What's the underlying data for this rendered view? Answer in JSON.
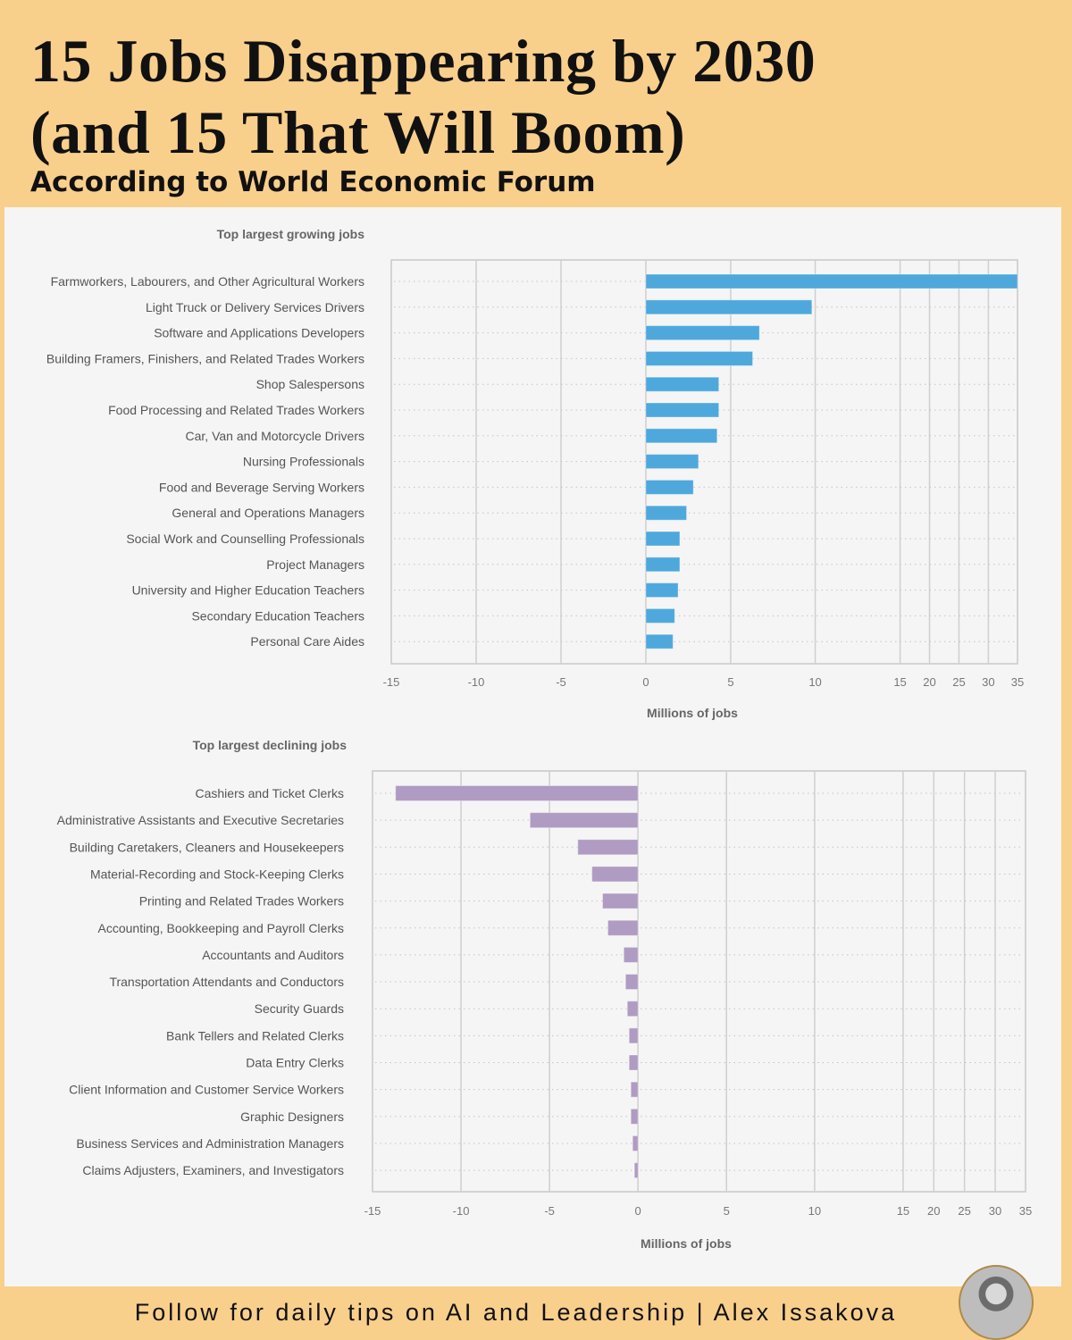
{
  "header": {
    "title_line1": "15 Jobs Disappearing by 2030",
    "title_line2": "(and 15 That Will Boom)",
    "subtitle": "According to World Economic Forum"
  },
  "footer": {
    "text": "Follow for daily tips on AI and Leadership  |  Alex Issakova",
    "avatar": "author-photo"
  },
  "chart_data": [
    {
      "type": "bar",
      "orientation": "horizontal",
      "title": "Top largest growing jobs",
      "xlabel": "Millions of jobs",
      "xticks": [
        -15,
        -10,
        -5,
        0,
        5,
        10,
        15,
        20,
        25,
        30,
        35
      ],
      "xlim": [
        -15,
        35
      ],
      "x_scale": "compressed above 15",
      "grid": true,
      "color": "#4ea8dc",
      "categories": [
        "Farmworkers, Labourers, and Other Agricultural Workers",
        "Light Truck or Delivery Services Drivers",
        "Software and Applications Developers",
        "Building Framers, Finishers, and Related Trades Workers",
        "Shop Salespersons",
        "Food Processing and Related Trades Workers",
        "Car, Van and Motorcycle Drivers",
        "Nursing Professionals",
        "Food and Beverage Serving Workers",
        "General and Operations Managers",
        "Social Work and Counselling Professionals",
        "Project Managers",
        "University and Higher Education Teachers",
        "Secondary Education Teachers",
        "Personal Care Aides"
      ],
      "values": [
        35,
        9.8,
        6.7,
        6.3,
        4.3,
        4.3,
        4.2,
        3.1,
        2.8,
        2.4,
        2.0,
        2.0,
        1.9,
        1.7,
        1.6
      ]
    },
    {
      "type": "bar",
      "orientation": "horizontal",
      "title": "Top largest declining jobs",
      "xlabel": "Millions of jobs",
      "xticks": [
        -15,
        -10,
        -5,
        0,
        5,
        10,
        15,
        20,
        25,
        30,
        35
      ],
      "xlim": [
        -15,
        35
      ],
      "x_scale": "compressed above 15",
      "grid": true,
      "color": "#b09bc2",
      "categories": [
        "Cashiers and Ticket Clerks",
        "Administrative Assistants and Executive Secretaries",
        "Building Caretakers, Cleaners and Housekeepers",
        "Material-Recording and Stock-Keeping Clerks",
        "Printing and Related Trades Workers",
        "Accounting, Bookkeeping and Payroll Clerks",
        "Accountants and Auditors",
        "Transportation Attendants and Conductors",
        "Security Guards",
        "Bank Tellers and Related Clerks",
        "Data Entry Clerks",
        "Client Information and Customer Service Workers",
        "Graphic Designers",
        "Business Services and Administration Managers",
        "Claims Adjusters, Examiners, and Investigators"
      ],
      "values": [
        -13.7,
        -6.1,
        -3.4,
        -2.6,
        -2.0,
        -1.7,
        -0.8,
        -0.7,
        -0.6,
        -0.5,
        -0.5,
        -0.4,
        -0.4,
        -0.3,
        -0.2
      ]
    }
  ]
}
